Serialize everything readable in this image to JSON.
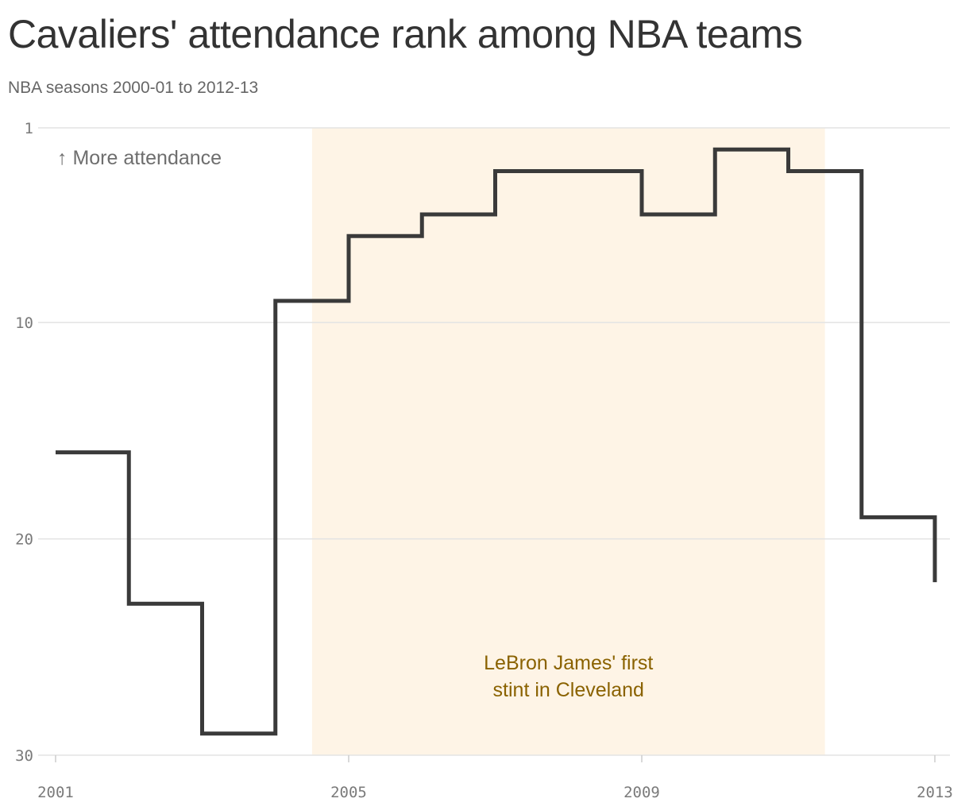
{
  "title": "Cavaliers' attendance rank among NBA teams",
  "subtitle": "NBA seasons 2000-01 to 2012-13",
  "colors": {
    "line": "#3a3a3a",
    "shade": "#fef4e6",
    "shade_text": "#8a6200",
    "grid": "#e3e3e3",
    "tick_text": "#7a7a7a"
  },
  "chart_data": {
    "type": "line",
    "step": true,
    "title": "Cavaliers' attendance rank among NBA teams",
    "subtitle": "NBA seasons 2000-01 to 2012-13",
    "xlabel": "",
    "ylabel": "",
    "x": [
      2001,
      2002,
      2003,
      2004,
      2005,
      2006,
      2007,
      2008,
      2009,
      2010,
      2011,
      2012,
      2013
    ],
    "y": [
      16,
      23,
      29,
      9,
      6,
      5,
      3,
      3,
      5,
      2,
      3,
      19,
      22
    ],
    "xlim": [
      2001,
      2013
    ],
    "ylim": [
      30,
      1
    ],
    "y_inverted": true,
    "yticks": [
      1,
      10,
      20,
      30
    ],
    "xticks": [
      2001,
      2005,
      2009,
      2013
    ],
    "grid": "horizontal",
    "shaded_region": {
      "x_start": 2004,
      "x_end": 2011,
      "label_lines": [
        "LeBron James' first",
        "stint in Cleveland"
      ]
    },
    "annotation": "↑ More attendance"
  }
}
